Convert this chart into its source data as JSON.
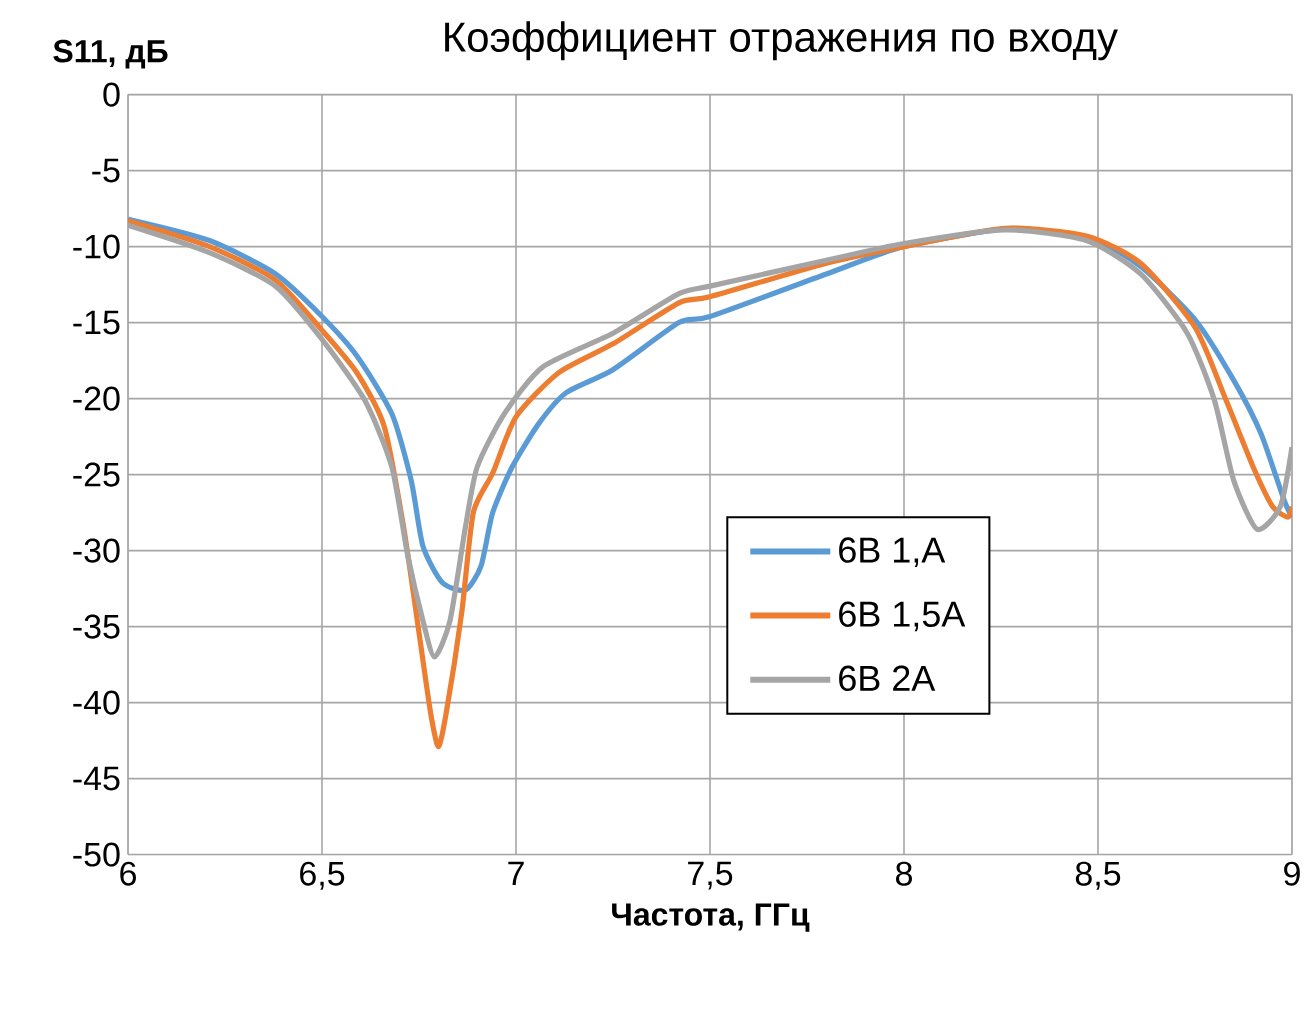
{
  "chart_data": {
    "type": "line",
    "title": "Коэффициент отражения по входу",
    "xlabel": "Частота, ГГц",
    "ylabel": "S11, дБ",
    "xlim": [
      6,
      9
    ],
    "ylim": [
      -50,
      0
    ],
    "xticks": [
      6,
      {
        "value": 6.5,
        "label": "6,5"
      },
      7,
      {
        "value": 7.5,
        "label": "7,5"
      },
      8,
      {
        "value": 8.5,
        "label": "8,5"
      },
      9
    ],
    "yticks": [
      0,
      -5,
      -10,
      -15,
      -20,
      -25,
      -30,
      -35,
      -40,
      -45,
      -50
    ],
    "grid": true,
    "legend": "right",
    "marker": "none",
    "line_style": "solid",
    "series": [
      {
        "name": "6В 1,А",
        "color": "#5b9bd5",
        "x": [
          6.0,
          6.21,
          6.38,
          6.5,
          6.59,
          6.68,
          6.73,
          6.76,
          6.81,
          6.87,
          6.91,
          6.94,
          6.99,
          7.06,
          7.13,
          7.25,
          7.42,
          7.5,
          7.8,
          8.0,
          8.28,
          8.49,
          8.61,
          8.75,
          8.85,
          8.92,
          8.98,
          9.0
        ],
        "values": [
          -8.2,
          -9.6,
          -11.8,
          -14.6,
          -17.2,
          -21,
          -25.4,
          -29.7,
          -32.1,
          -32.6,
          -31,
          -27.5,
          -24.5,
          -21.6,
          -19.6,
          -18.1,
          -15,
          -14.6,
          -11.8,
          -10,
          -8.8,
          -9.6,
          -11.3,
          -14.8,
          -18.8,
          -22.3,
          -26.7,
          -27.8
        ]
      },
      {
        "name": "6В 1,5А",
        "color": "#ed7d31",
        "x": [
          6.0,
          6.21,
          6.38,
          6.5,
          6.59,
          6.66,
          6.71,
          6.75,
          6.78,
          6.8,
          6.82,
          6.86,
          6.89,
          6.94,
          7.0,
          7.11,
          7.25,
          7.42,
          7.5,
          7.8,
          8.0,
          8.26,
          8.47,
          8.61,
          8.75,
          8.83,
          8.9,
          8.95,
          8.99,
          9.0
        ],
        "values": [
          -8.3,
          -10,
          -12.2,
          -15.5,
          -18.3,
          -21.8,
          -28.4,
          -35.4,
          -40.7,
          -42.9,
          -40.7,
          -34.1,
          -27.5,
          -24.9,
          -21.2,
          -18.3,
          -16.4,
          -13.7,
          -13.3,
          -11.1,
          -10,
          -8.8,
          -9.3,
          -11.1,
          -15.3,
          -20.1,
          -24.5,
          -27.1,
          -27.8,
          -27.1
        ]
      },
      {
        "name": "6В 2А",
        "color": "#a5a5a5",
        "x": [
          6.0,
          6.21,
          6.38,
          6.5,
          6.61,
          6.68,
          6.72,
          6.76,
          6.79,
          6.83,
          6.87,
          6.9,
          6.97,
          7.07,
          7.25,
          7.42,
          7.5,
          7.8,
          8.0,
          8.26,
          8.47,
          8.61,
          8.73,
          8.8,
          8.85,
          8.91,
          8.97,
          9.0
        ],
        "values": [
          -8.6,
          -10.4,
          -12.6,
          -16.1,
          -20.1,
          -24.5,
          -30.2,
          -34.6,
          -37,
          -34.6,
          -28.4,
          -24.5,
          -21,
          -17.9,
          -15.7,
          -13.1,
          -12.6,
          -10.9,
          -9.8,
          -8.9,
          -9.6,
          -11.8,
          -15.7,
          -20.1,
          -25.4,
          -28.6,
          -27.1,
          -23.2
        ]
      }
    ]
  }
}
